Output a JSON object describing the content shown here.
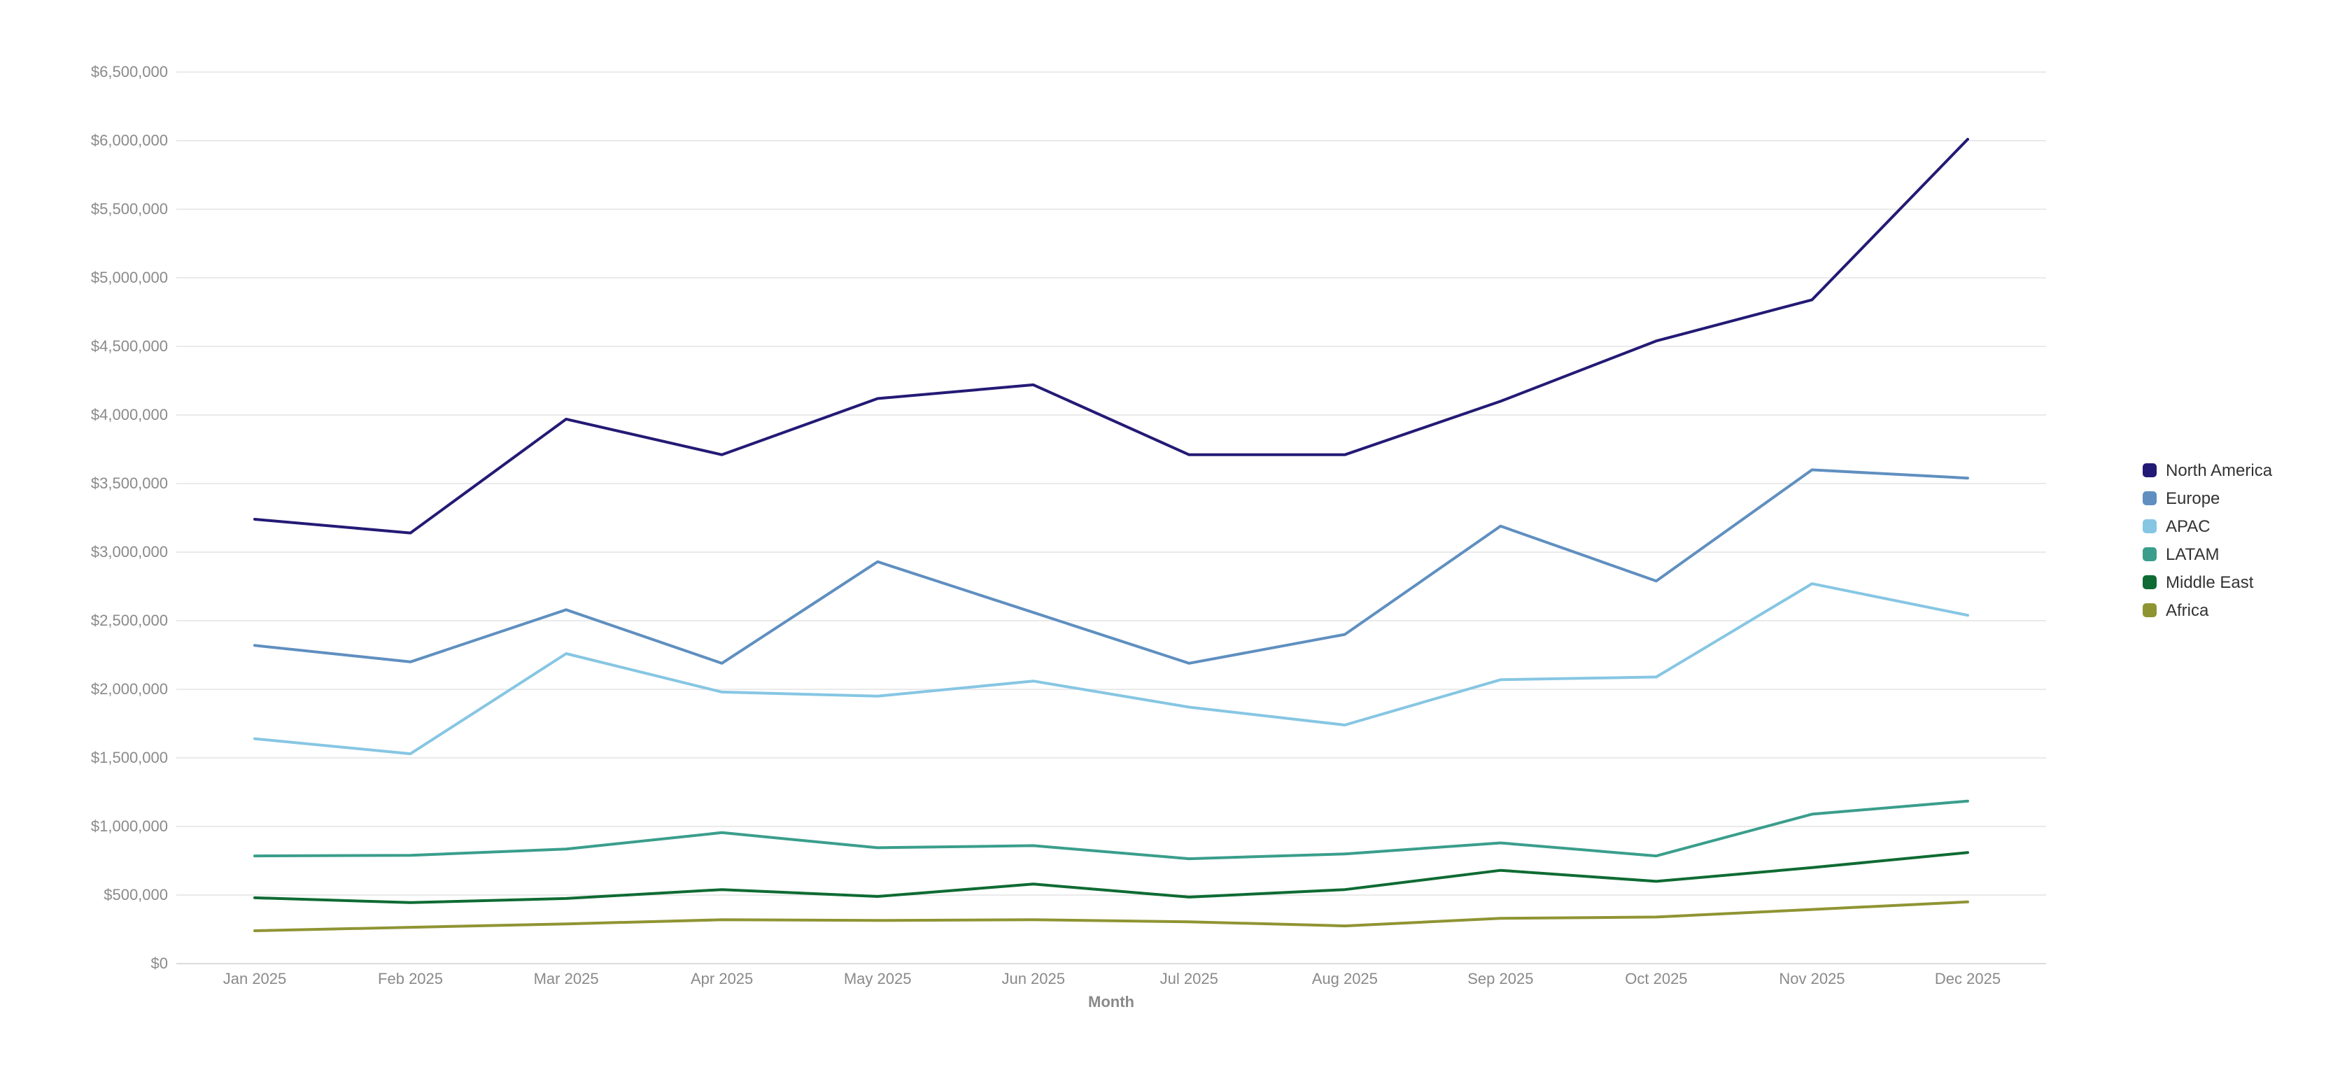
{
  "chart_data": {
    "type": "line",
    "title": "",
    "xlabel": "Month",
    "ylabel": "",
    "categories": [
      "Jan 2025",
      "Feb 2025",
      "Mar 2025",
      "Apr 2025",
      "May 2025",
      "Jun 2025",
      "Jul 2025",
      "Aug 2025",
      "Sep 2025",
      "Oct 2025",
      "Nov 2025",
      "Dec 2025"
    ],
    "ylim": [
      0,
      6500000
    ],
    "yticks": [
      0,
      500000,
      1000000,
      1500000,
      2000000,
      2500000,
      3000000,
      3500000,
      4000000,
      4500000,
      5000000,
      5500000,
      6000000,
      6500000
    ],
    "ytick_labels": [
      "$0",
      "$500,000",
      "$1,000,000",
      "$1,500,000",
      "$2,000,000",
      "$2,500,000",
      "$3,000,000",
      "$3,500,000",
      "$4,000,000",
      "$4,500,000",
      "$5,000,000",
      "$5,500,000",
      "$6,000,000",
      "$6,500,000"
    ],
    "grid": true,
    "legend_position": "right",
    "series": [
      {
        "name": "North America",
        "color": "#231a75",
        "values": [
          3240000,
          3140000,
          3970000,
          3710000,
          4120000,
          4220000,
          3710000,
          3710000,
          4100000,
          4540000,
          4840000,
          6010000
        ]
      },
      {
        "name": "Europe",
        "color": "#5f8fc0",
        "values": [
          2320000,
          2200000,
          2580000,
          2190000,
          2930000,
          2560000,
          2190000,
          2400000,
          3190000,
          2790000,
          3600000,
          3540000
        ]
      },
      {
        "name": "APAC",
        "color": "#86c6e3",
        "values": [
          1640000,
          1530000,
          2260000,
          1980000,
          1950000,
          2060000,
          1870000,
          1740000,
          2070000,
          2090000,
          2770000,
          2540000
        ]
      },
      {
        "name": "LATAM",
        "color": "#3a9e8c",
        "values": [
          785000,
          790000,
          835000,
          955000,
          845000,
          860000,
          765000,
          800000,
          880000,
          785000,
          1090000,
          1185000
        ]
      },
      {
        "name": "Middle East",
        "color": "#0e6b33",
        "values": [
          480000,
          445000,
          475000,
          540000,
          490000,
          580000,
          485000,
          540000,
          680000,
          600000,
          700000,
          810000
        ]
      },
      {
        "name": "Africa",
        "color": "#8f9433",
        "values": [
          240000,
          265000,
          290000,
          320000,
          315000,
          320000,
          305000,
          275000,
          330000,
          340000,
          395000,
          450000
        ]
      }
    ]
  }
}
